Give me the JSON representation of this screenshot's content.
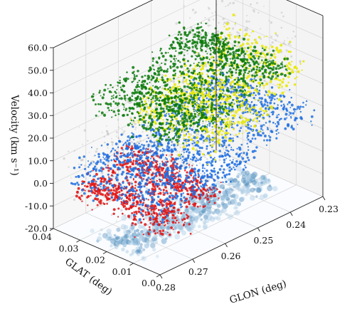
{
  "chart_data": {
    "type": "scatter",
    "projection": "3d",
    "title": "",
    "xlabel": "GLON (deg)",
    "ylabel": "GLAT (deg)",
    "zlabel": "Velocity (km s⁻¹)",
    "xlim": [
      0.23,
      0.28
    ],
    "ylim": [
      0.0,
      0.04
    ],
    "zlim": [
      -20.0,
      60.0
    ],
    "x_ticks": [
      "0.23",
      "0.24",
      "0.25",
      "0.26",
      "0.27",
      "0.28"
    ],
    "y_ticks": [
      "0.0",
      "0.01",
      "0.02",
      "0.03",
      "0.04"
    ],
    "z_ticks": [
      "-20.0",
      "-10.0",
      "0.0",
      "10.0",
      "20.0",
      "30.0",
      "40.0",
      "50.0",
      "60.0"
    ],
    "grid": true,
    "legend": false,
    "floor_projection": "integrated intensity map (blue)",
    "series": [
      {
        "color": "#b8b8b8",
        "glon_range": [
          0.232,
          0.278
        ],
        "glat_range": [
          0.003,
          0.04
        ],
        "velocity_range": [
          -12,
          57
        ]
      },
      {
        "color": "#e01010",
        "glon_range": [
          0.26,
          0.279
        ],
        "glat_range": [
          0.0,
          0.034
        ],
        "velocity_range": [
          -10,
          12
        ]
      },
      {
        "color": "#1f6fe0",
        "glon_range": [
          0.232,
          0.279
        ],
        "glat_range": [
          0.0,
          0.036
        ],
        "velocity_range": [
          -8,
          27
        ]
      },
      {
        "color": "#e8e800",
        "glon_range": [
          0.232,
          0.262
        ],
        "glat_range": [
          0.003,
          0.034
        ],
        "velocity_range": [
          8,
          46
        ]
      },
      {
        "color": "#0a7a0a",
        "glon_range": [
          0.236,
          0.272
        ],
        "glat_range": [
          0.003,
          0.038
        ],
        "velocity_range": [
          22,
          52
        ]
      }
    ]
  }
}
